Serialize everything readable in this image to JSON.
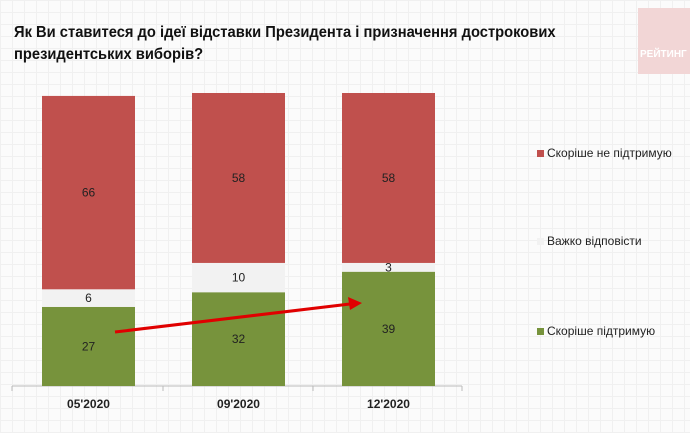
{
  "chart_data": {
    "type": "bar",
    "stacked": true,
    "title": "Як Ви ставитеся до ідеї відставки Президента і призначення дострокових президентських виборів?",
    "categories": [
      "05'2020",
      "09'2020",
      "12'2020"
    ],
    "series": [
      {
        "name": "Скоріше  підтримую",
        "values": [
          27,
          32,
          39
        ],
        "color": "#77933c"
      },
      {
        "name": "Важко відповісти",
        "values": [
          6,
          10,
          3
        ],
        "color": "#f2f2f2"
      },
      {
        "name": "Скоріше не підтримую",
        "values": [
          66,
          58,
          58
        ],
        "color": "#c0504d"
      }
    ],
    "annotations": [
      {
        "type": "arrow",
        "from": "05'2020",
        "to": "12'2020",
        "color": "#e00000"
      }
    ],
    "grid": false,
    "legend": "right"
  },
  "logo": "РЕЙТИНГ"
}
